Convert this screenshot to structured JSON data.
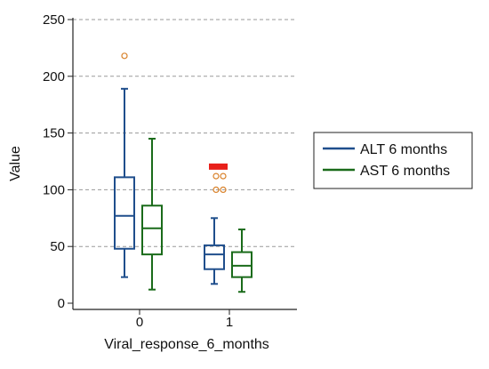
{
  "chart_data": {
    "type": "boxplot",
    "title": "",
    "xlabel": "Viral_response_6_months",
    "ylabel": "Value",
    "categories": [
      "0",
      "1"
    ],
    "ylim": [
      0,
      250
    ],
    "yticks": [
      0,
      50,
      100,
      150,
      200,
      250
    ],
    "grid": "horizontal-dashed",
    "legend_position": "right",
    "series": [
      {
        "name": "ALT 6 months",
        "color": "#1f4e8c",
        "boxes": [
          {
            "category": "0",
            "whisker_low": 23,
            "q1": 48,
            "median": 77,
            "q3": 111,
            "whisker_high": 189,
            "outliers": [
              218
            ]
          },
          {
            "category": "1",
            "whisker_low": 17,
            "q1": 30,
            "median": 43,
            "q3": 51,
            "whisker_high": 75,
            "outliers": [
              100,
              112,
              120,
              120,
              120,
              120
            ]
          }
        ]
      },
      {
        "name": "AST 6 months",
        "color": "#1a6b1a",
        "boxes": [
          {
            "category": "0",
            "whisker_low": 12,
            "q1": 43,
            "median": 66,
            "q3": 86,
            "whisker_high": 145,
            "outliers": []
          },
          {
            "category": "1",
            "whisker_low": 10,
            "q1": 23,
            "median": 33,
            "q3": 45,
            "whisker_high": 65,
            "outliers": [
              100,
              112
            ]
          }
        ]
      }
    ],
    "outlier_color": "#d9822b",
    "extreme_outlier_color": "#e8201a"
  }
}
